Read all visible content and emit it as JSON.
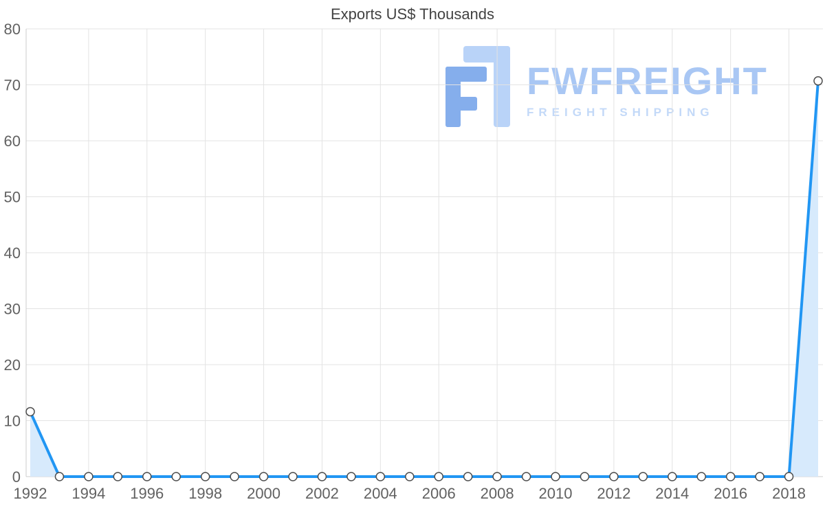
{
  "watermark": {
    "brand": "FWFREIGHT",
    "tagline": "FREIGHT SHIPPING"
  },
  "chart_data": {
    "type": "area",
    "title": "Exports US$ Thousands",
    "series_name": "Exports US$ Thousands",
    "x": [
      1992,
      1993,
      1994,
      1995,
      1996,
      1997,
      1998,
      1999,
      2000,
      2001,
      2002,
      2003,
      2004,
      2005,
      2006,
      2007,
      2008,
      2009,
      2010,
      2011,
      2012,
      2013,
      2014,
      2015,
      2016,
      2017,
      2018,
      2019
    ],
    "values": [
      11.6,
      0,
      0,
      0,
      0,
      0,
      0,
      0,
      0,
      0,
      0,
      0,
      0,
      0,
      0,
      0,
      0,
      0,
      0,
      0,
      0,
      0,
      0,
      0,
      0,
      0,
      0,
      70.7
    ],
    "ylim": [
      0,
      80
    ],
    "yticks": [
      0,
      10,
      20,
      30,
      40,
      50,
      60,
      70,
      80
    ],
    "xticks": [
      1992,
      1994,
      1996,
      1998,
      2000,
      2002,
      2004,
      2006,
      2008,
      2010,
      2012,
      2014,
      2016,
      2018
    ],
    "grid": true,
    "legend": false,
    "marker": "circle",
    "colors": {
      "line": "#2196f3",
      "fill": "#d7eafc",
      "marker_fill": "#ffffff",
      "marker_stroke": "#4d4d4d",
      "grid": "#e3e3e3",
      "axis": "#cccccc",
      "tick_text": "#616161",
      "title_text": "#424242",
      "watermark_dark": "#85aeec",
      "watermark_light": "#b9d3f8",
      "watermark_text": "#a9c7f4",
      "watermark_tagline": "#c3d9f8"
    }
  }
}
